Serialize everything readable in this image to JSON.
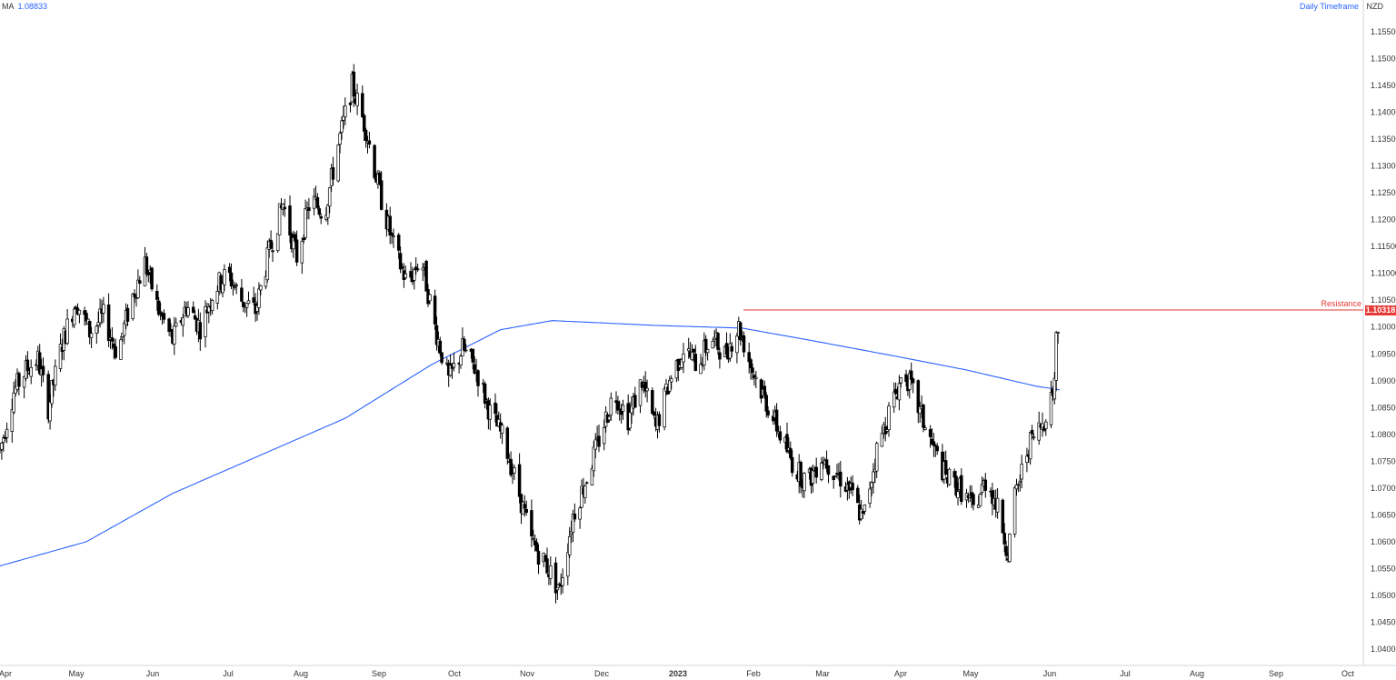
{
  "header": {
    "ma_label": "MA",
    "ma_value": "1.08833",
    "timeframe": "Daily Timeframe",
    "currency": "NZD"
  },
  "colors": {
    "ma_line": "#2962ff",
    "resistance": "#e53935",
    "candle_up": "#ffffff",
    "candle_down": "#000000",
    "candle_border": "#000000"
  },
  "chart_data": {
    "type": "candlestick",
    "y_ticks": [
      "1.15500",
      "1.15000",
      "1.14500",
      "1.14000",
      "1.13500",
      "1.13000",
      "1.12500",
      "1.12000",
      "1.11500",
      "1.11000",
      "1.10500",
      "1.10000",
      "1.09500",
      "1.09000",
      "1.08500",
      "1.08000",
      "1.07500",
      "1.07000",
      "1.06500",
      "1.06000",
      "1.05500",
      "1.05000",
      "1.04500",
      "1.04000"
    ],
    "ylim": [
      1.0375,
      1.1578
    ],
    "x_labels": [
      {
        "text": "Apr",
        "strong": false
      },
      {
        "text": "May",
        "strong": false
      },
      {
        "text": "Jun",
        "strong": false
      },
      {
        "text": "Jul",
        "strong": false
      },
      {
        "text": "Aug",
        "strong": false
      },
      {
        "text": "Sep",
        "strong": false
      },
      {
        "text": "Oct",
        "strong": false
      },
      {
        "text": "Nov",
        "strong": false
      },
      {
        "text": "Dec",
        "strong": false
      },
      {
        "text": "2023",
        "strong": true
      },
      {
        "text": "Feb",
        "strong": false
      },
      {
        "text": "Mar",
        "strong": false
      },
      {
        "text": "Apr",
        "strong": false
      },
      {
        "text": "May",
        "strong": false
      },
      {
        "text": "Jun",
        "strong": false
      },
      {
        "text": "Jul",
        "strong": false
      },
      {
        "text": "Aug",
        "strong": false
      },
      {
        "text": "Sep",
        "strong": false
      },
      {
        "text": "Oct",
        "strong": false
      }
    ],
    "resistance": {
      "label": "Resistance",
      "value": "1.10318",
      "level": 1.10318
    },
    "price_waypoints": [
      [
        0,
        1.077
      ],
      [
        8,
        1.088
      ],
      [
        15,
        1.092
      ],
      [
        22,
        1.094
      ],
      [
        28,
        1.085
      ],
      [
        36,
        1.097
      ],
      [
        44,
        1.105
      ],
      [
        52,
        1.099
      ],
      [
        60,
        1.102
      ],
      [
        68,
        1.095
      ],
      [
        76,
        1.105
      ],
      [
        84,
        1.112
      ],
      [
        92,
        1.103
      ],
      [
        100,
        1.0975
      ],
      [
        108,
        1.104
      ],
      [
        116,
        1.1
      ],
      [
        124,
        1.107
      ],
      [
        132,
        1.11
      ],
      [
        140,
        1.105
      ],
      [
        148,
        1.103
      ],
      [
        156,
        1.114
      ],
      [
        164,
        1.123
      ],
      [
        172,
        1.113
      ],
      [
        180,
        1.124
      ],
      [
        188,
        1.121
      ],
      [
        196,
        1.134
      ],
      [
        204,
        1.145
      ],
      [
        212,
        1.137
      ],
      [
        220,
        1.125
      ],
      [
        228,
        1.115
      ],
      [
        236,
        1.108
      ],
      [
        244,
        1.113
      ],
      [
        252,
        1.1
      ],
      [
        260,
        1.09
      ],
      [
        268,
        1.096
      ],
      [
        276,
        1.092
      ],
      [
        284,
        1.084
      ],
      [
        292,
        1.079
      ],
      [
        300,
        1.07
      ],
      [
        308,
        1.06
      ],
      [
        316,
        1.056
      ],
      [
        324,
        1.051
      ],
      [
        332,
        1.065
      ],
      [
        340,
        1.072
      ],
      [
        348,
        1.08
      ],
      [
        356,
        1.088
      ],
      [
        364,
        1.083
      ],
      [
        372,
        1.09
      ],
      [
        380,
        1.081
      ],
      [
        388,
        1.09
      ],
      [
        396,
        1.096
      ],
      [
        404,
        1.093
      ],
      [
        412,
        1.098
      ],
      [
        420,
        1.095
      ],
      [
        428,
        1.1
      ],
      [
        436,
        1.092
      ],
      [
        444,
        1.086
      ],
      [
        452,
        1.08
      ],
      [
        460,
        1.074
      ],
      [
        468,
        1.071
      ],
      [
        476,
        1.076
      ],
      [
        484,
        1.073
      ],
      [
        492,
        1.07
      ],
      [
        500,
        1.064
      ],
      [
        508,
        1.077
      ],
      [
        516,
        1.085
      ],
      [
        524,
        1.092
      ],
      [
        532,
        1.085
      ],
      [
        540,
        1.078
      ],
      [
        548,
        1.072
      ],
      [
        556,
        1.07
      ],
      [
        564,
        1.066
      ],
      [
        572,
        1.072
      ],
      [
        580,
        1.064
      ],
      [
        584,
        1.058
      ],
      [
        588,
        1.068
      ],
      [
        596,
        1.078
      ],
      [
        604,
        1.082
      ],
      [
        610,
        1.088
      ],
      [
        614,
        1.099
      ]
    ],
    "ma_waypoints": [
      [
        0,
        1.0555
      ],
      [
        50,
        1.06
      ],
      [
        100,
        1.069
      ],
      [
        150,
        1.076
      ],
      [
        200,
        1.083
      ],
      [
        250,
        1.093
      ],
      [
        290,
        1.0995
      ],
      [
        320,
        1.1012
      ],
      [
        380,
        1.1003
      ],
      [
        430,
        1.0998
      ],
      [
        470,
        1.0975
      ],
      [
        520,
        1.0945
      ],
      [
        560,
        1.092
      ],
      [
        600,
        1.089
      ],
      [
        614,
        1.0883
      ]
    ]
  }
}
